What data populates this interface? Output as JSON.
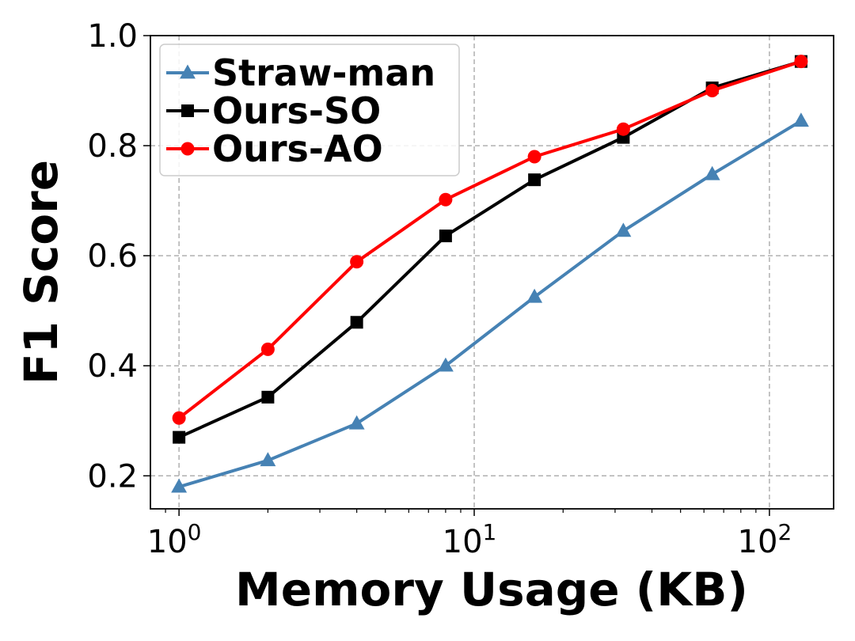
{
  "chart_data": {
    "type": "line",
    "xscale": "log",
    "x": [
      1,
      2,
      4,
      8,
      16,
      32,
      64,
      128
    ],
    "xlim": [
      0.8,
      165
    ],
    "ylim": [
      0.14,
      1.0
    ],
    "xticks": [
      {
        "value": 1,
        "base": "10",
        "exp": "0"
      },
      {
        "value": 10,
        "base": "10",
        "exp": "1"
      },
      {
        "value": 100,
        "base": "10",
        "exp": "2"
      }
    ],
    "yticks": [
      {
        "value": 0.2,
        "label": "0.2"
      },
      {
        "value": 0.4,
        "label": "0.4"
      },
      {
        "value": 0.6,
        "label": "0.6"
      },
      {
        "value": 0.8,
        "label": "0.8"
      },
      {
        "value": 1.0,
        "label": "1.0"
      }
    ],
    "xlabel": "Memory Usage (KB)",
    "ylabel": "F1 Score",
    "grid": true,
    "legend_position": "top-left",
    "series": [
      {
        "name": "Straw-man",
        "color": "#4682b4",
        "marker": "triangle",
        "values": [
          0.18,
          0.228,
          0.295,
          0.4,
          0.525,
          0.645,
          0.748,
          0.845
        ]
      },
      {
        "name": "Ours-SO",
        "color": "#000000",
        "marker": "square",
        "values": [
          0.27,
          0.343,
          0.479,
          0.636,
          0.738,
          0.815,
          0.905,
          0.953
        ]
      },
      {
        "name": "Ours-AO",
        "color": "#ff0000",
        "marker": "circle",
        "values": [
          0.305,
          0.43,
          0.589,
          0.702,
          0.78,
          0.83,
          0.9,
          0.953
        ]
      }
    ]
  }
}
